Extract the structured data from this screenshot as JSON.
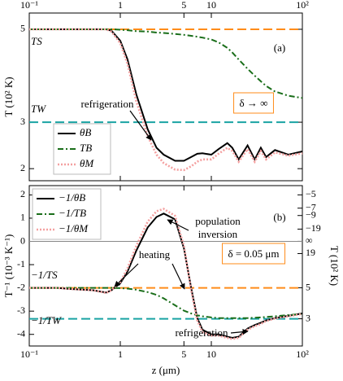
{
  "chart_data": [
    {
      "type": "line",
      "xscale": "log",
      "xlim": [
        0.1,
        100
      ],
      "xticks": [
        {
          "value": 0.1,
          "label": "10⁻¹"
        },
        1,
        5,
        10,
        {
          "value": 100,
          "label": "10²"
        }
      ],
      "xtick_side": "top",
      "ylim": [
        1.74,
        5.35
      ],
      "yticks": [
        2,
        3,
        5
      ],
      "ylabel": "T (10² K)",
      "x": [
        0.1,
        0.2,
        0.3,
        0.5,
        0.7,
        0.8,
        1,
        1.2,
        1.5,
        2,
        2.5,
        3,
        4,
        5,
        6,
        7,
        8,
        10,
        12,
        15,
        17,
        20,
        25,
        30,
        35,
        40,
        50,
        70,
        100
      ],
      "series": [
        {
          "name": "θB",
          "color": "#000000",
          "style": "solid",
          "values": [
            5,
            5,
            5,
            5,
            5,
            4.97,
            4.75,
            4.35,
            3.6,
            2.85,
            2.45,
            2.3,
            2.17,
            2.17,
            2.25,
            2.32,
            2.33,
            2.3,
            2.42,
            2.55,
            2.45,
            2.2,
            2.5,
            2.2,
            2.45,
            2.25,
            2.4,
            2.3,
            2.37
          ]
        },
        {
          "name": "TB",
          "color": "#1a6e1a",
          "style": "dashdot",
          "values": [
            5,
            5,
            5,
            5,
            5,
            5,
            4.99,
            4.98,
            4.96,
            4.95,
            4.93,
            4.92,
            4.9,
            4.88,
            4.86,
            4.84,
            4.82,
            4.78,
            4.72,
            4.6,
            4.5,
            4.35,
            4.15,
            4.0,
            3.88,
            3.78,
            3.66,
            3.57,
            3.52
          ]
        },
        {
          "name": "θM",
          "color": "#f4a0a0",
          "style": "dotted",
          "values": [
            5,
            5,
            5,
            5,
            5,
            4.95,
            4.7,
            4.25,
            3.45,
            2.7,
            2.3,
            2.12,
            1.98,
            1.97,
            2.05,
            2.15,
            2.2,
            2.2,
            2.32,
            2.45,
            2.38,
            2.15,
            2.42,
            2.15,
            2.38,
            2.2,
            2.35,
            2.28,
            2.33
          ]
        }
      ],
      "hlines": [
        {
          "label": "TS",
          "value": 5,
          "color": "#ff8c1a"
        },
        {
          "label": "TW",
          "value": 3,
          "color": "#1aa3a3"
        }
      ],
      "legend": "lower left",
      "annotations": [
        {
          "text": "refrigeration"
        },
        {
          "text": "(a)"
        },
        {
          "text": "δ → ∞",
          "boxed": true,
          "color": "#ff8c1a"
        }
      ]
    },
    {
      "type": "line",
      "xscale": "log",
      "xlim": [
        0.1,
        100
      ],
      "xticks": [
        {
          "value": 0.1,
          "label": "10⁻¹"
        },
        1,
        5,
        10,
        {
          "value": 100,
          "label": "10²"
        }
      ],
      "xtick_side": "bottom",
      "xlabel": "z (μm)",
      "ylim": [
        -4.5,
        2.4
      ],
      "yticks": [
        -4,
        -3,
        -2,
        -1,
        0,
        1,
        2
      ],
      "ylabel": "T⁻¹ (10⁻³ K⁻¹)",
      "y2scale": "reciprocal",
      "y2lim": [
        2.22,
        -4.17
      ],
      "y2label": "T (10² K)",
      "y2ticks": [
        {
          "value": -5,
          "label": "−5"
        },
        {
          "value": -7,
          "label": "−7"
        },
        {
          "value": -9,
          "label": "−9"
        },
        {
          "value": -19,
          "label": "−19"
        },
        {
          "value": null,
          "label": "∞"
        },
        19,
        5,
        3
      ],
      "x": [
        0.1,
        0.2,
        0.3,
        0.5,
        0.7,
        0.8,
        1,
        1.2,
        1.5,
        2,
        2.5,
        3,
        4,
        5,
        6,
        7,
        8,
        10,
        12,
        15,
        17,
        20,
        25,
        30,
        35,
        40,
        50,
        70,
        100
      ],
      "series": [
        {
          "name": "−1/θB",
          "color": "#000000",
          "style": "solid",
          "values": [
            -2,
            -2,
            -2.05,
            -2.1,
            -2.2,
            -2.1,
            -1.8,
            -1.3,
            -0.4,
            0.6,
            1.05,
            1.2,
            0.95,
            -0.3,
            -2.0,
            -3.3,
            -3.8,
            -4.0,
            -4.0,
            -4.1,
            -4.15,
            -4.1,
            -3.75,
            -3.6,
            -3.5,
            -3.4,
            -3.3,
            -3.2,
            -3.1
          ]
        },
        {
          "name": "−1/TB",
          "color": "#1a6e1a",
          "style": "dashdot",
          "values": [
            -2,
            -2,
            -2,
            -2,
            -2,
            -2,
            -2.01,
            -2.03,
            -2.08,
            -2.18,
            -2.3,
            -2.45,
            -2.75,
            -2.98,
            -3.1,
            -3.18,
            -3.22,
            -3.27,
            -3.3,
            -3.3,
            -3.3,
            -3.3,
            -3.3,
            -3.28,
            -3.27,
            -3.25,
            -3.22,
            -3.17,
            -3.12
          ]
        },
        {
          "name": "−1/θM",
          "color": "#f4a0a0",
          "style": "dotted",
          "values": [
            -2,
            -2,
            -2.05,
            -2.1,
            -2.22,
            -2.1,
            -1.75,
            -1.15,
            -0.2,
            0.85,
            1.3,
            1.4,
            1.1,
            -0.2,
            -2.1,
            -3.4,
            -3.9,
            -4.05,
            -4.05,
            -4.15,
            -4.2,
            -4.15,
            -3.8,
            -3.65,
            -3.55,
            -3.42,
            -3.32,
            -3.22,
            -3.12
          ]
        }
      ],
      "hlines": [
        {
          "label": "−1/TS",
          "value": -2,
          "color": "#ff8c1a"
        },
        {
          "label": "−1/TW",
          "value": -3.333,
          "color": "#1aa3a3"
        },
        {
          "value": 0,
          "color": "#888888"
        }
      ],
      "legend": "upper left",
      "annotations": [
        {
          "text": "population"
        },
        {
          "text": "inversion"
        },
        {
          "text": "heating"
        },
        {
          "text": "refrigeration"
        },
        {
          "text": "(b)"
        },
        {
          "text": "δ = 0.05 μm",
          "boxed": true,
          "color": "#ff8c1a"
        }
      ]
    }
  ]
}
